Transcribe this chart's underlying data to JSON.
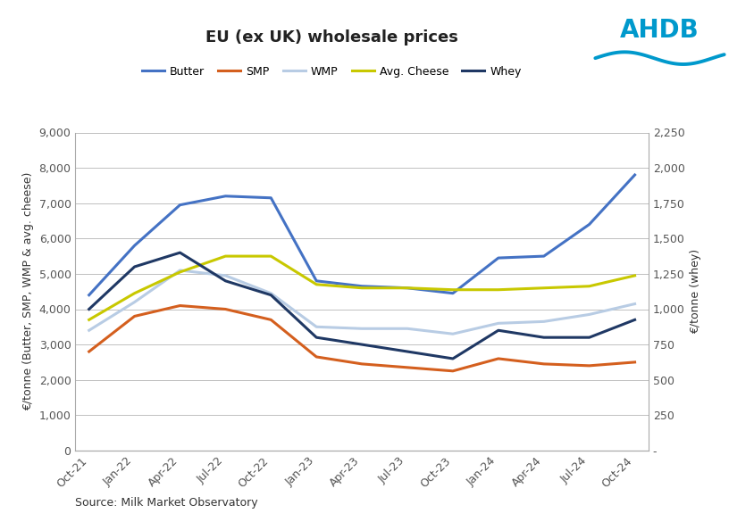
{
  "title": "EU (ex UK) wholesale prices",
  "x_labels": [
    "Oct-21",
    "Jan-22",
    "Apr-22",
    "Jul-22",
    "Oct-22",
    "Jan-23",
    "Apr-23",
    "Jul-23",
    "Oct-23",
    "Jan-24",
    "Apr-24",
    "Jul-24",
    "Oct-24"
  ],
  "series": {
    "Butter": [
      4400,
      5800,
      6950,
      7200,
      7150,
      4800,
      4650,
      4600,
      4450,
      5450,
      5500,
      6400,
      7800
    ],
    "SMP": [
      2800,
      3800,
      4100,
      4000,
      3700,
      2650,
      2450,
      2350,
      2250,
      2600,
      2450,
      2400,
      2500
    ],
    "WMP": [
      3400,
      4200,
      5100,
      4950,
      4450,
      3500,
      3450,
      3450,
      3300,
      3600,
      3650,
      3850,
      4150
    ],
    "Avg. Cheese": [
      3700,
      4450,
      5050,
      5500,
      5500,
      4700,
      4600,
      4600,
      4550,
      4550,
      4600,
      4650,
      4950
    ],
    "Whey": [
      1000,
      1300,
      1400,
      1200,
      1100,
      800,
      750,
      700,
      650,
      850,
      800,
      800,
      925
    ]
  },
  "colors": {
    "Butter": "#4472C4",
    "SMP": "#D45F1E",
    "WMP": "#B8CCE4",
    "Avg. Cheese": "#C8C800",
    "Whey": "#1F3864"
  },
  "left_ylabel": "€/tonne (Butter, SMP, WMP & avg. cheese)",
  "right_ylabel": "€/tonne (whey)",
  "ylim_left": [
    0,
    9000
  ],
  "ylim_right": [
    0,
    2250
  ],
  "yticks_left": [
    0,
    1000,
    2000,
    3000,
    4000,
    5000,
    6000,
    7000,
    8000,
    9000
  ],
  "ytick_labels_left": [
    "0",
    "1,000",
    "2,000",
    "3,000",
    "4,000",
    "5,000",
    "6,000",
    "7,000",
    "8,000",
    "9,000"
  ],
  "yticks_right": [
    0,
    250,
    500,
    750,
    1000,
    1250,
    1500,
    1750,
    2000,
    2250
  ],
  "ytick_labels_right": [
    "-",
    "250",
    "500",
    "750",
    "1,000",
    "1,250",
    "1,500",
    "1,750",
    "2,000",
    "2,250"
  ],
  "source_text": "Source: Milk Market Observatory",
  "background_color": "#FFFFFF",
  "grid_color": "#C0C0C0",
  "line_width": 2.2,
  "ahdb_color": "#0099CC"
}
